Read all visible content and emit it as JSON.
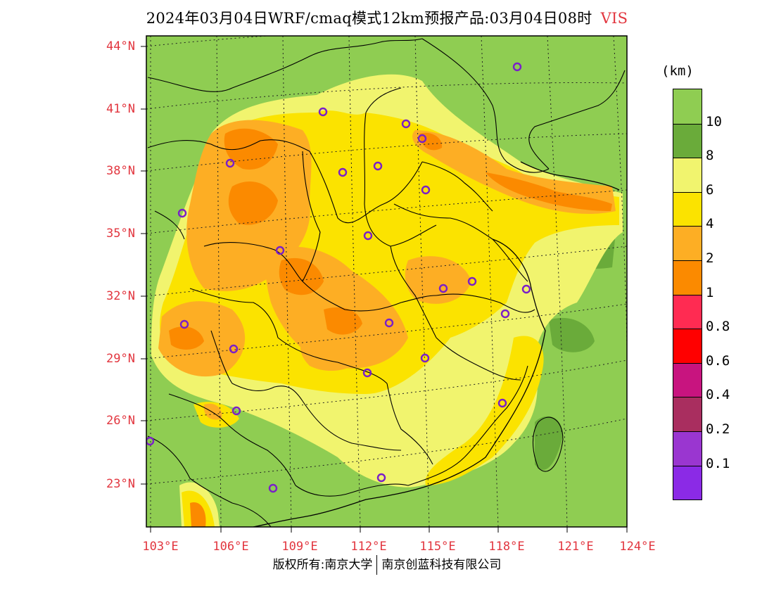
{
  "title": {
    "text": "2024年03月04日WRF/cmaq模式12km预报产品:03月04日08时",
    "variable": "VIS"
  },
  "colors": {
    "background": "#8fcd52",
    "accent": "#e2363f",
    "station_marker": "#7a1fc8"
  },
  "map": {
    "lat_ticks": [
      "44°N",
      "41°N",
      "38°N",
      "35°N",
      "32°N",
      "29°N",
      "26°N",
      "23°N"
    ],
    "lon_ticks": [
      "103°E",
      "106°E",
      "109°E",
      "112°E",
      "115°E",
      "118°E",
      "121°E",
      "124°E"
    ]
  },
  "legend": {
    "unit": "(km)",
    "labels": [
      "10",
      "8",
      "6",
      "4",
      "2",
      "1",
      "0.8",
      "0.6",
      "0.4",
      "0.2",
      "0.1"
    ],
    "colors": [
      "#8fcd52",
      "#6aab3a",
      "#f1f46e",
      "#fbe300",
      "#fdae24",
      "#fb8a00",
      "#ff2b52",
      "#ff0000",
      "#c8147f",
      "#a92e5f",
      "#9a36d0",
      "#8b2ae6"
    ]
  },
  "footer": {
    "left": "版权所有:南京大学",
    "right": "南京创蓝科技有限公司"
  }
}
